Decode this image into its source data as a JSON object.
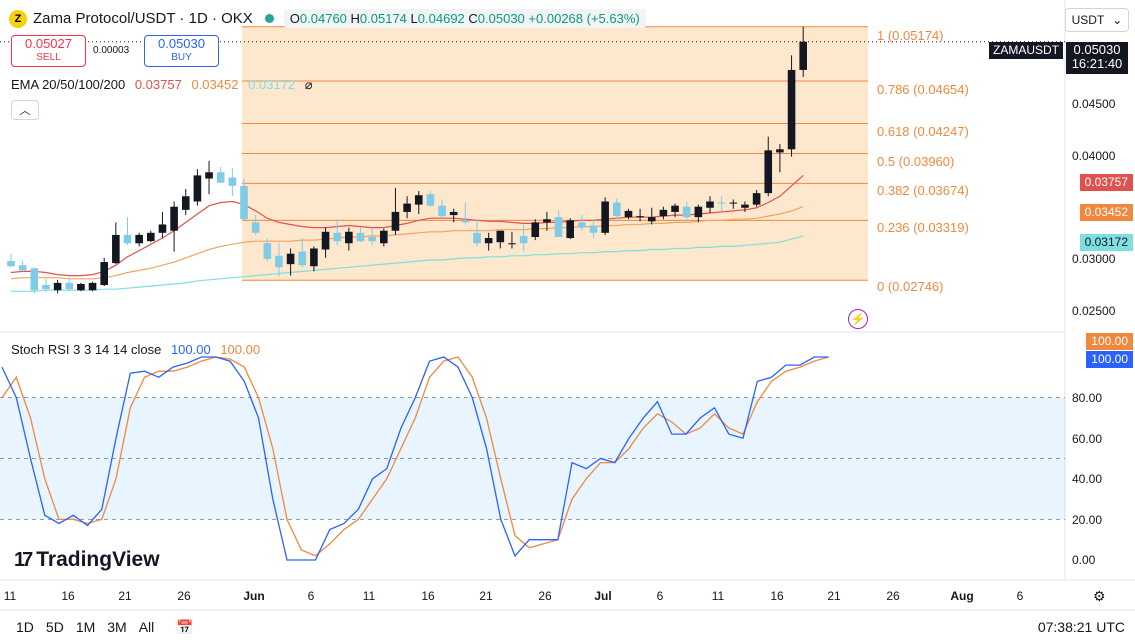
{
  "header": {
    "logo_letter": "Z",
    "title": "Zama Protocol/USDT · 1D · OKX",
    "ohlc": {
      "o_label": "O",
      "o": "0.04760",
      "h_label": "H",
      "h": "0.05174",
      "l_label": "L",
      "l": "0.04692",
      "c_label": "C",
      "c": "0.05030",
      "change": "+0.00268 (+5.63%)"
    },
    "currency": "USDT"
  },
  "trade": {
    "sell_price": "0.05027",
    "sell_label": "SELL",
    "spread": "0.00003",
    "buy_price": "0.05030",
    "buy_label": "BUY"
  },
  "ema": {
    "label": "EMA 20/50/100/200",
    "v1": "0.03757",
    "v2": "0.03452",
    "v3": "0.03172",
    "colors": {
      "ema20": "#e0524f",
      "ema50": "#f0883e",
      "ema100": "#7fdfe0"
    }
  },
  "stoch": {
    "label": "Stoch RSI 3 3 14 14 close",
    "k": "100.00",
    "d": "100.00",
    "k_color": "#2962ff",
    "d_color": "#f0883e"
  },
  "price_axis": {
    "ticker": "ZAMAUSDT",
    "last_price": "0.05030",
    "countdown": "16:21:40",
    "ticks": [
      "0.04500",
      "0.04000",
      "0.03000",
      "0.02500"
    ],
    "ema_badges": [
      "0.03757",
      "0.03452",
      "0.03172"
    ],
    "rsi_badges": [
      "100.00",
      "100.00"
    ],
    "rsi_ticks": [
      "80.00",
      "60.00",
      "40.00",
      "20.00",
      "0.00"
    ]
  },
  "fib": [
    {
      "label": "1 (0.05174)",
      "level": 0.05174
    },
    {
      "label": "0.786 (0.04654)",
      "level": 0.04654
    },
    {
      "label": "0.618 (0.04247)",
      "level": 0.04247
    },
    {
      "label": "0.5 (0.03960)",
      "level": 0.0396
    },
    {
      "label": "0.382 (0.03674)",
      "level": 0.03674
    },
    {
      "label": "0.236 (0.03319)",
      "level": 0.03319
    },
    {
      "label": "0 (0.02746)",
      "level": 0.02746
    }
  ],
  "time_axis": [
    "11",
    "16",
    "21",
    "26",
    "Jun",
    "6",
    "11",
    "16",
    "21",
    "26",
    "Jul",
    "6",
    "11",
    "16",
    "21",
    "26",
    "Aug",
    "6"
  ],
  "branding": "TradingView",
  "bottom": {
    "ranges": [
      "1D",
      "5D",
      "1M",
      "3M",
      "All"
    ],
    "clock": "07:38:21 UTC"
  },
  "chart_data": {
    "type": "candlestick",
    "price_range": [
      0.0225,
      0.0543
    ],
    "candles": [
      {
        "o": 0.0293,
        "h": 0.03,
        "l": 0.0287,
        "c": 0.0288
      },
      {
        "o": 0.0289,
        "h": 0.0293,
        "l": 0.0283,
        "c": 0.0284
      },
      {
        "o": 0.0286,
        "h": 0.0287,
        "l": 0.0262,
        "c": 0.0265
      },
      {
        "o": 0.027,
        "h": 0.0276,
        "l": 0.0263,
        "c": 0.0266
      },
      {
        "o": 0.0265,
        "h": 0.0275,
        "l": 0.0262,
        "c": 0.0272
      },
      {
        "o": 0.0272,
        "h": 0.0277,
        "l": 0.0264,
        "c": 0.0266
      },
      {
        "o": 0.0265,
        "h": 0.0272,
        "l": 0.0264,
        "c": 0.0271
      },
      {
        "o": 0.0265,
        "h": 0.0273,
        "l": 0.0264,
        "c": 0.0272
      },
      {
        "o": 0.027,
        "h": 0.0296,
        "l": 0.0269,
        "c": 0.0292
      },
      {
        "o": 0.0291,
        "h": 0.033,
        "l": 0.029,
        "c": 0.0318
      },
      {
        "o": 0.0318,
        "h": 0.0335,
        "l": 0.0308,
        "c": 0.031
      },
      {
        "o": 0.031,
        "h": 0.032,
        "l": 0.0307,
        "c": 0.0318
      },
      {
        "o": 0.0312,
        "h": 0.0322,
        "l": 0.0311,
        "c": 0.032
      },
      {
        "o": 0.032,
        "h": 0.034,
        "l": 0.0315,
        "c": 0.0328
      },
      {
        "o": 0.0322,
        "h": 0.035,
        "l": 0.0302,
        "c": 0.0345
      },
      {
        "o": 0.0342,
        "h": 0.0362,
        "l": 0.0337,
        "c": 0.0355
      },
      {
        "o": 0.035,
        "h": 0.0381,
        "l": 0.0346,
        "c": 0.0375
      },
      {
        "o": 0.0372,
        "h": 0.0389,
        "l": 0.0357,
        "c": 0.0378
      },
      {
        "o": 0.0378,
        "h": 0.0383,
        "l": 0.0368,
        "c": 0.0368
      },
      {
        "o": 0.0373,
        "h": 0.0382,
        "l": 0.0355,
        "c": 0.0365
      },
      {
        "o": 0.0365,
        "h": 0.0372,
        "l": 0.0332,
        "c": 0.0333
      },
      {
        "o": 0.033,
        "h": 0.0337,
        "l": 0.0318,
        "c": 0.032
      },
      {
        "o": 0.031,
        "h": 0.0315,
        "l": 0.0293,
        "c": 0.0295
      },
      {
        "o": 0.0298,
        "h": 0.031,
        "l": 0.0278,
        "c": 0.0287
      },
      {
        "o": 0.029,
        "h": 0.0305,
        "l": 0.0279,
        "c": 0.03
      },
      {
        "o": 0.0302,
        "h": 0.0315,
        "l": 0.0287,
        "c": 0.0289
      },
      {
        "o": 0.0288,
        "h": 0.0307,
        "l": 0.0283,
        "c": 0.0305
      },
      {
        "o": 0.0304,
        "h": 0.0325,
        "l": 0.0296,
        "c": 0.0321
      },
      {
        "o": 0.032,
        "h": 0.0333,
        "l": 0.0308,
        "c": 0.0312
      },
      {
        "o": 0.031,
        "h": 0.0325,
        "l": 0.0303,
        "c": 0.0321
      },
      {
        "o": 0.032,
        "h": 0.0325,
        "l": 0.0311,
        "c": 0.0312
      },
      {
        "o": 0.0316,
        "h": 0.0325,
        "l": 0.0308,
        "c": 0.0312
      },
      {
        "o": 0.031,
        "h": 0.0324,
        "l": 0.0307,
        "c": 0.0322
      },
      {
        "o": 0.0322,
        "h": 0.0363,
        "l": 0.0318,
        "c": 0.034
      },
      {
        "o": 0.034,
        "h": 0.0355,
        "l": 0.0334,
        "c": 0.0348
      },
      {
        "o": 0.0347,
        "h": 0.036,
        "l": 0.0338,
        "c": 0.0356
      },
      {
        "o": 0.0357,
        "h": 0.036,
        "l": 0.0345,
        "c": 0.0346
      },
      {
        "o": 0.0346,
        "h": 0.0352,
        "l": 0.0334,
        "c": 0.0336
      },
      {
        "o": 0.0337,
        "h": 0.0343,
        "l": 0.033,
        "c": 0.034
      },
      {
        "o": 0.0332,
        "h": 0.0349,
        "l": 0.0328,
        "c": 0.033
      },
      {
        "o": 0.032,
        "h": 0.0333,
        "l": 0.0307,
        "c": 0.031
      },
      {
        "o": 0.031,
        "h": 0.032,
        "l": 0.0303,
        "c": 0.0315
      },
      {
        "o": 0.0311,
        "h": 0.0322,
        "l": 0.0305,
        "c": 0.0322
      },
      {
        "o": 0.0309,
        "h": 0.0321,
        "l": 0.0305,
        "c": 0.031
      },
      {
        "o": 0.0317,
        "h": 0.0328,
        "l": 0.0302,
        "c": 0.031
      },
      {
        "o": 0.0316,
        "h": 0.0333,
        "l": 0.0313,
        "c": 0.033
      },
      {
        "o": 0.033,
        "h": 0.034,
        "l": 0.0322,
        "c": 0.0333
      },
      {
        "o": 0.0335,
        "h": 0.0342,
        "l": 0.0316,
        "c": 0.0316
      },
      {
        "o": 0.0315,
        "h": 0.0334,
        "l": 0.0314,
        "c": 0.0332
      },
      {
        "o": 0.033,
        "h": 0.0337,
        "l": 0.0322,
        "c": 0.0325
      },
      {
        "o": 0.0327,
        "h": 0.0333,
        "l": 0.0315,
        "c": 0.032
      },
      {
        "o": 0.032,
        "h": 0.0354,
        "l": 0.0318,
        "c": 0.035
      },
      {
        "o": 0.0349,
        "h": 0.0353,
        "l": 0.0333,
        "c": 0.0336
      },
      {
        "o": 0.0335,
        "h": 0.0343,
        "l": 0.0333,
        "c": 0.0341
      },
      {
        "o": 0.0335,
        "h": 0.0343,
        "l": 0.0331,
        "c": 0.0336
      },
      {
        "o": 0.0331,
        "h": 0.0344,
        "l": 0.0328,
        "c": 0.0335
      },
      {
        "o": 0.0336,
        "h": 0.0345,
        "l": 0.0333,
        "c": 0.0342
      },
      {
        "o": 0.034,
        "h": 0.0348,
        "l": 0.0335,
        "c": 0.0346
      },
      {
        "o": 0.0345,
        "h": 0.035,
        "l": 0.0331,
        "c": 0.0335
      },
      {
        "o": 0.0335,
        "h": 0.0347,
        "l": 0.033,
        "c": 0.0345
      },
      {
        "o": 0.0344,
        "h": 0.0355,
        "l": 0.0339,
        "c": 0.035
      },
      {
        "o": 0.0349,
        "h": 0.0355,
        "l": 0.034,
        "c": 0.0348
      },
      {
        "o": 0.0348,
        "h": 0.0352,
        "l": 0.0343,
        "c": 0.0349
      },
      {
        "o": 0.0344,
        "h": 0.035,
        "l": 0.034,
        "c": 0.0347
      },
      {
        "o": 0.0347,
        "h": 0.0361,
        "l": 0.0345,
        "c": 0.0358
      },
      {
        "o": 0.0358,
        "h": 0.0412,
        "l": 0.0355,
        "c": 0.0399
      },
      {
        "o": 0.0397,
        "h": 0.0405,
        "l": 0.0378,
        "c": 0.04
      },
      {
        "o": 0.04,
        "h": 0.049,
        "l": 0.0393,
        "c": 0.0476
      },
      {
        "o": 0.0476,
        "h": 0.05174,
        "l": 0.04692,
        "c": 0.0503
      }
    ],
    "ema20": [
      0.0282,
      0.0283,
      0.0283,
      0.0282,
      0.028,
      0.0279,
      0.0279,
      0.028,
      0.0283,
      0.0289,
      0.0297,
      0.0303,
      0.0309,
      0.0315,
      0.0322,
      0.033,
      0.0338,
      0.0346,
      0.0349,
      0.035,
      0.0347,
      0.0341,
      0.0334,
      0.033,
      0.0328,
      0.0326,
      0.0325,
      0.0325,
      0.0326,
      0.0327,
      0.0326,
      0.0325,
      0.0325,
      0.0327,
      0.0329,
      0.0332,
      0.0334,
      0.0334,
      0.0334,
      0.0333,
      0.0332,
      0.0331,
      0.0331,
      0.033,
      0.0329,
      0.0329,
      0.033,
      0.033,
      0.0331,
      0.0332,
      0.0332,
      0.0333,
      0.0334,
      0.0335,
      0.0335,
      0.0335,
      0.0336,
      0.0337,
      0.0337,
      0.0338,
      0.0339,
      0.034,
      0.0341,
      0.0342,
      0.0344,
      0.0349,
      0.0355,
      0.0365,
      0.0375
    ],
    "ema50": [
      0.0276,
      0.0277,
      0.0277,
      0.0277,
      0.0277,
      0.0276,
      0.0276,
      0.0276,
      0.0277,
      0.0279,
      0.0282,
      0.0284,
      0.0286,
      0.0289,
      0.0292,
      0.0296,
      0.03,
      0.0304,
      0.0307,
      0.0309,
      0.0311,
      0.0312,
      0.0312,
      0.0312,
      0.0312,
      0.0313,
      0.0313,
      0.0314,
      0.0315,
      0.0316,
      0.0316,
      0.0317,
      0.0317,
      0.0318,
      0.0319,
      0.032,
      0.0321,
      0.0321,
      0.0322,
      0.0322,
      0.0322,
      0.0322,
      0.0323,
      0.0323,
      0.0323,
      0.0324,
      0.0324,
      0.0325,
      0.0325,
      0.0326,
      0.0326,
      0.0327,
      0.0327,
      0.0328,
      0.0328,
      0.0329,
      0.0329,
      0.033,
      0.033,
      0.0331,
      0.0332,
      0.0332,
      0.0333,
      0.0333,
      0.0334,
      0.0336,
      0.0338,
      0.0341,
      0.0345
    ],
    "ema100": [
      0.0264,
      0.0264,
      0.0264,
      0.0265,
      0.0265,
      0.0265,
      0.0265,
      0.0265,
      0.0266,
      0.0266,
      0.0267,
      0.0268,
      0.0269,
      0.027,
      0.0271,
      0.0272,
      0.0274,
      0.0275,
      0.0276,
      0.0277,
      0.0278,
      0.0279,
      0.028,
      0.0281,
      0.0282,
      0.0283,
      0.0284,
      0.0285,
      0.0286,
      0.0287,
      0.0288,
      0.0289,
      0.029,
      0.0291,
      0.0292,
      0.0293,
      0.0294,
      0.0294,
      0.0295,
      0.0296,
      0.0296,
      0.0297,
      0.0297,
      0.0298,
      0.0298,
      0.0299,
      0.0299,
      0.03,
      0.03,
      0.0301,
      0.0301,
      0.0302,
      0.0302,
      0.0303,
      0.0303,
      0.0304,
      0.0304,
      0.0305,
      0.0305,
      0.0306,
      0.0306,
      0.0307,
      0.0307,
      0.0308,
      0.0309,
      0.031,
      0.0311,
      0.0314,
      0.0317
    ],
    "stoch_k": [
      95,
      80,
      50,
      22,
      18,
      22,
      17,
      25,
      60,
      92,
      93,
      90,
      95,
      97,
      100,
      100,
      98,
      88,
      70,
      30,
      0,
      0,
      0,
      15,
      18,
      25,
      40,
      45,
      65,
      80,
      98,
      100,
      95,
      80,
      55,
      20,
      2,
      10,
      10,
      10,
      48,
      45,
      50,
      48,
      60,
      70,
      78,
      62,
      62,
      70,
      75,
      62,
      60,
      88,
      90,
      96,
      96,
      100,
      100
    ],
    "stoch_d": [
      80,
      90,
      70,
      40,
      20,
      20,
      18,
      20,
      40,
      75,
      90,
      93,
      93,
      95,
      98,
      100,
      99,
      95,
      80,
      55,
      20,
      5,
      2,
      8,
      15,
      20,
      30,
      40,
      55,
      70,
      90,
      98,
      100,
      90,
      70,
      40,
      12,
      6,
      8,
      10,
      30,
      40,
      48,
      48,
      55,
      65,
      72,
      68,
      62,
      65,
      72,
      65,
      62,
      78,
      88,
      93,
      95,
      98,
      100
    ]
  }
}
